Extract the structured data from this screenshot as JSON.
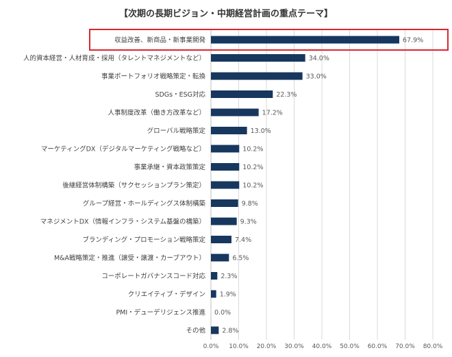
{
  "chart_data": {
    "type": "bar",
    "orientation": "horizontal",
    "title": "【次期の長期ビジョン・中期経営計画の重点テーマ】",
    "categories": [
      "収益改善、新商品・新事業開発",
      "人的資本経営・人材育成・採用（タレントマネジメントなど）",
      "事業ポートフォリオ戦略策定・転換",
      "SDGs・ESG対応",
      "人事制度改革（働き方改革など）",
      "グローバル戦略策定",
      "マーケティングDX（デジタルマーケティング戦略など）",
      "事業承継・資本政策策定",
      "後継経営体制構築（サクセッションプラン策定）",
      "グループ経営・ホールディングス体制構築",
      "マネジメントDX（情報インフラ・システム基盤の構築）",
      "ブランディング・プロモーション戦略策定",
      "M&A戦略策定・推進（譲受・譲渡・カーブアウト）",
      "コーポレートガバナンスコード対応",
      "クリエイティブ・デザイン",
      "PMI・デューデリジェンス推進",
      "その他"
    ],
    "values": [
      67.9,
      34.0,
      33.0,
      22.3,
      17.2,
      13.0,
      10.2,
      10.2,
      10.2,
      9.8,
      9.3,
      7.4,
      6.5,
      2.3,
      1.9,
      0.0,
      2.8
    ],
    "value_labels": [
      "67.9%",
      "34.0%",
      "33.0%",
      "22.3%",
      "17.2%",
      "13.0%",
      "10.2%",
      "10.2%",
      "10.2%",
      "9.8%",
      "9.3%",
      "7.4%",
      "6.5%",
      "2.3%",
      "1.9%",
      "0.0%",
      "2.8%"
    ],
    "xlim": [
      0,
      80
    ],
    "x_ticks": [
      "0.0%",
      "10.0%",
      "20.0%",
      "30.0%",
      "40.0%",
      "50.0%",
      "60.0%",
      "70.0%",
      "80.0%"
    ],
    "grid": "vertical",
    "legend": "none",
    "highlighted_category_index": 0,
    "colors": {
      "bar": "#17375e",
      "grid": "#d9d9d9",
      "highlight_border": "#d9262c",
      "text": "#404040"
    }
  }
}
